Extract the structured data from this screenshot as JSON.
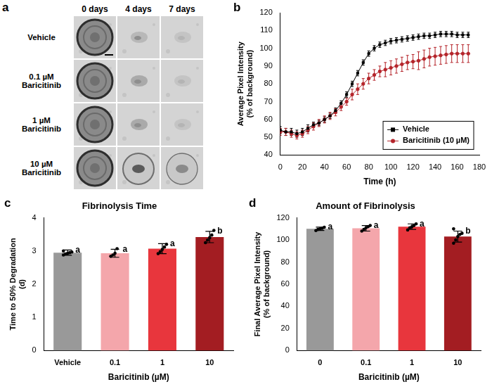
{
  "image_panel": {
    "panel_label": "a",
    "columns": [
      "0 days",
      "4 days",
      "7 days"
    ],
    "rows": [
      "Vehicle",
      "0.1 µM Baricitinib",
      "1 µM Baricitinib",
      "10 µM Baricitinib"
    ]
  },
  "chart_data": [
    {
      "panel_label": "b",
      "type": "line",
      "x_label": "Time (h)",
      "y_label": "Average Pixel Intensity (% of background)",
      "x": [
        0,
        5,
        10,
        15,
        20,
        25,
        30,
        35,
        40,
        45,
        50,
        55,
        60,
        65,
        70,
        75,
        80,
        85,
        90,
        95,
        100,
        105,
        110,
        115,
        120,
        125,
        130,
        135,
        140,
        145,
        150,
        155,
        160,
        165,
        170
      ],
      "series": [
        {
          "name": "Vehicle",
          "color": "#000000",
          "marker": "square",
          "values": [
            54,
            53,
            53,
            52,
            53,
            55,
            57,
            58,
            60,
            62,
            65,
            69,
            74,
            80,
            86,
            92,
            97,
            100,
            102,
            103,
            104,
            104.5,
            105,
            105.5,
            106,
            106.5,
            107,
            107,
            107.5,
            108,
            108,
            108,
            107.5,
            107.5,
            107.5
          ],
          "errors": [
            2,
            2,
            2,
            2,
            2,
            2,
            1.5,
            1.5,
            1.5,
            1.5,
            1.5,
            1.5,
            1.5,
            1.5,
            1.5,
            1.5,
            1.5,
            1.5,
            1.5,
            1.5,
            1.5,
            1.5,
            1.5,
            1.5,
            1.5,
            1.5,
            1.5,
            1.5,
            1.5,
            1.5,
            1.5,
            1.5,
            1.5,
            1.5,
            1.5
          ]
        },
        {
          "name": "Baricitinib (10 µM)",
          "color": "#b5252b",
          "marker": "circle",
          "values": [
            53,
            53,
            52,
            51,
            52,
            54,
            56,
            58,
            60,
            62,
            64,
            67,
            70,
            74,
            77,
            80,
            83,
            85,
            87,
            88,
            89,
            90,
            91,
            92,
            92.5,
            93,
            94,
            95,
            95.5,
            96,
            96.5,
            97,
            97,
            97,
            97
          ],
          "errors": [
            2,
            2,
            2,
            2,
            2,
            2,
            2,
            2,
            2,
            2,
            2,
            2,
            2,
            3,
            3,
            3,
            3,
            3,
            3,
            4,
            4,
            4,
            4,
            4,
            4,
            5,
            5,
            5,
            5,
            5,
            5,
            5,
            5,
            5,
            5
          ]
        }
      ],
      "xlim": [
        0,
        180
      ],
      "xticks": [
        0,
        20,
        40,
        60,
        80,
        100,
        120,
        140,
        160,
        180
      ],
      "ylim": [
        40,
        120
      ],
      "yticks": [
        40,
        50,
        60,
        70,
        80,
        90,
        100,
        110,
        120
      ],
      "grid": false,
      "legend": "bottom-right"
    },
    {
      "panel_label": "c",
      "type": "bar",
      "title": "Fibrinolysis Time",
      "y_label": "Time to 50% Degradation (d)",
      "x_label": "Baricitinib (µM)",
      "categories": [
        "Vehicle",
        "0.1",
        "1",
        "10"
      ],
      "values": [
        2.95,
        2.93,
        3.07,
        3.42
      ],
      "errors": [
        0.08,
        0.12,
        0.15,
        0.17
      ],
      "points": [
        [
          2.88,
          2.91,
          2.93,
          2.95,
          2.97,
          3.0
        ],
        [
          2.84,
          2.88,
          2.93,
          3.07
        ],
        [
          2.92,
          2.98,
          3.05,
          3.12,
          3.2
        ],
        [
          3.25,
          3.33,
          3.4,
          3.48,
          3.62
        ]
      ],
      "annotations": [
        "a",
        "a",
        "a",
        "b"
      ],
      "colors": [
        "#999999",
        "#f4a6ab",
        "#e8363d",
        "#a31d22"
      ],
      "ylim": [
        0,
        4
      ],
      "yticks": [
        0,
        1,
        2,
        3,
        4
      ],
      "grid": false
    },
    {
      "panel_label": "d",
      "type": "bar",
      "title": "Amount of Fibrinolysis",
      "y_label": "Final Average Pixel Intensity (% of background)",
      "x_label": "Baricitinib (µM)",
      "categories": [
        "0",
        "0.1",
        "1",
        "10"
      ],
      "values": [
        110,
        110.5,
        112,
        103
      ],
      "errors": [
        1.5,
        2.5,
        2.5,
        5
      ],
      "points": [
        [
          108.5,
          109.5,
          110,
          110.5,
          111.5
        ],
        [
          108,
          109.5,
          111,
          112,
          113
        ],
        [
          109,
          111,
          112,
          113,
          114.5
        ],
        [
          97,
          100,
          103,
          105,
          106,
          110
        ]
      ],
      "annotations": [
        "a",
        "a",
        "a",
        "b"
      ],
      "colors": [
        "#999999",
        "#f4a6ab",
        "#e8363d",
        "#a31d22"
      ],
      "ylim": [
        0,
        120
      ],
      "yticks": [
        0,
        20,
        40,
        60,
        80,
        100,
        120
      ],
      "grid": false
    }
  ]
}
